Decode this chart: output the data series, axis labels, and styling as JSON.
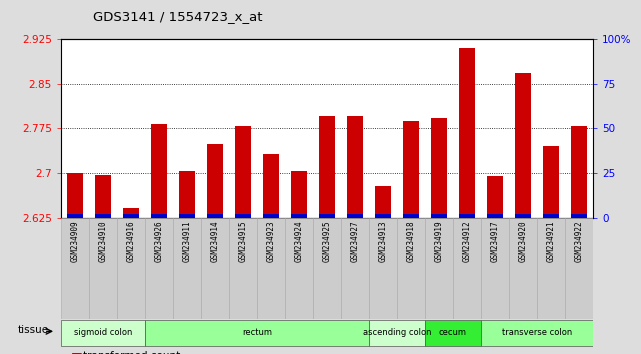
{
  "title": "GDS3141 / 1554723_x_at",
  "samples": [
    "GSM234909",
    "GSM234910",
    "GSM234916",
    "GSM234926",
    "GSM234911",
    "GSM234914",
    "GSM234915",
    "GSM234923",
    "GSM234924",
    "GSM234925",
    "GSM234927",
    "GSM234913",
    "GSM234918",
    "GSM234919",
    "GSM234912",
    "GSM234917",
    "GSM234920",
    "GSM234921",
    "GSM234922"
  ],
  "red_values": [
    2.7,
    2.697,
    2.642,
    2.782,
    2.703,
    2.748,
    2.779,
    2.732,
    2.703,
    2.795,
    2.795,
    2.678,
    2.788,
    2.793,
    2.91,
    2.695,
    2.868,
    2.745,
    2.779
  ],
  "blue_pct": [
    2,
    2,
    2,
    2,
    2,
    2,
    2,
    2,
    2,
    2,
    2,
    2,
    2,
    2,
    2,
    2,
    2,
    2,
    2
  ],
  "ymin": 2.625,
  "ymax": 2.925,
  "yticks": [
    2.625,
    2.7,
    2.775,
    2.85,
    2.925
  ],
  "ytick_labels": [
    "2.625",
    "2.7",
    "2.775",
    "2.85",
    "2.925"
  ],
  "right_yticks": [
    0,
    25,
    50,
    75,
    100
  ],
  "right_ytick_labels": [
    "0",
    "25",
    "50",
    "75",
    "100%"
  ],
  "tissue_groups": [
    {
      "label": "sigmoid colon",
      "start": 0,
      "end": 3,
      "color": "#ccffcc"
    },
    {
      "label": "rectum",
      "start": 3,
      "end": 11,
      "color": "#99ff99"
    },
    {
      "label": "ascending colon",
      "start": 11,
      "end": 13,
      "color": "#ccffcc"
    },
    {
      "label": "cecum",
      "start": 13,
      "end": 15,
      "color": "#33ee33"
    },
    {
      "label": "transverse colon",
      "start": 15,
      "end": 19,
      "color": "#99ff99"
    }
  ],
  "bar_color_red": "#cc0000",
  "bar_color_blue": "#0000cc",
  "background_color": "#dddddd",
  "plot_bg_color": "#ffffff",
  "tick_label_bg": "#cccccc",
  "bar_width": 0.55
}
